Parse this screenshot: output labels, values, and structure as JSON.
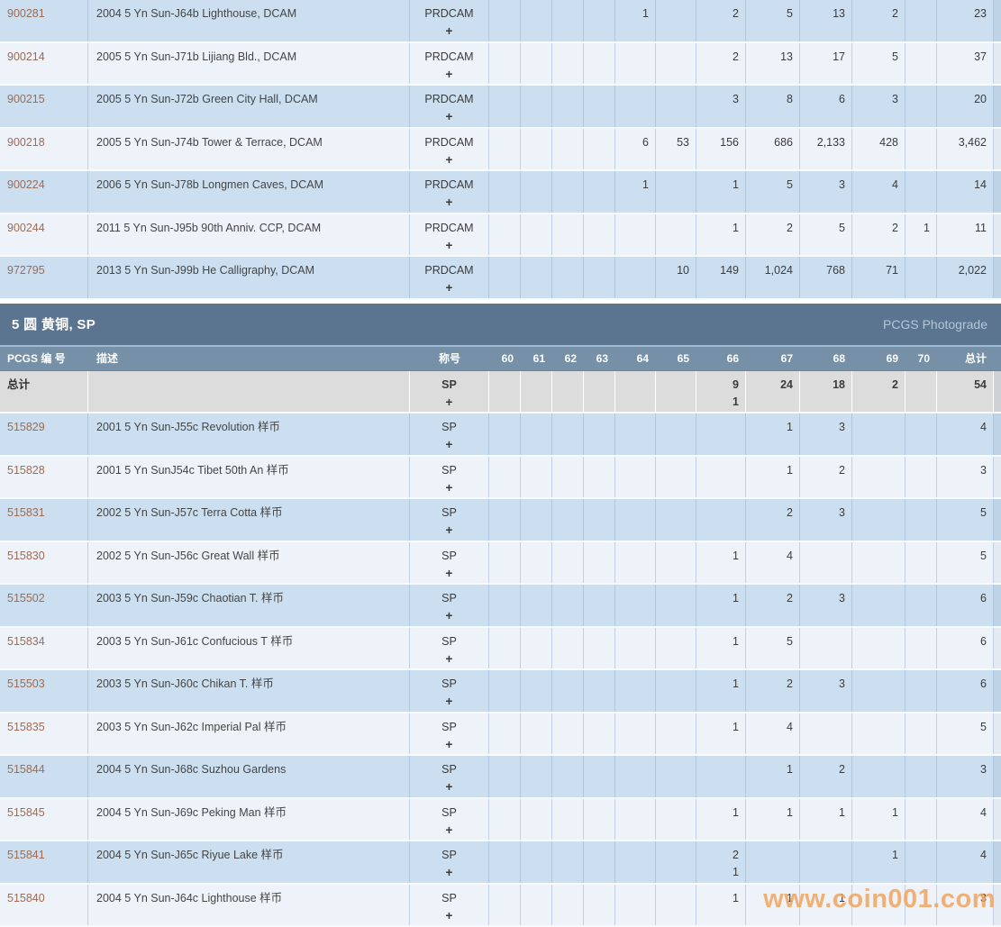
{
  "watermark": "www.coin001.com",
  "plus_sign": "+",
  "section": {
    "title": "5 圆 黄铜, SP",
    "right_label": "PCGS Photograde"
  },
  "table_header": {
    "pcgs_no": "PCGS 编 号",
    "desc": "描述",
    "designation": "称号",
    "grades": [
      "60",
      "61",
      "62",
      "63",
      "64",
      "65",
      "66",
      "67",
      "68",
      "69",
      "70"
    ],
    "total": "总计"
  },
  "table1_rows": [
    {
      "pcgs_no": "900281",
      "desc": "2004 5 Yn Sun-J64b Lighthouse, DCAM",
      "desig": "PRDCAM",
      "values": {
        "64": "1",
        "66": "2",
        "67": "5",
        "68": "13",
        "69": "2"
      },
      "total": "23"
    },
    {
      "pcgs_no": "900214",
      "desc": "2005 5 Yn Sun-J71b Lijiang Bld., DCAM",
      "desig": "PRDCAM",
      "values": {
        "66": "2",
        "67": "13",
        "68": "17",
        "69": "5"
      },
      "total": "37"
    },
    {
      "pcgs_no": "900215",
      "desc": "2005 5 Yn Sun-J72b Green City Hall, DCAM",
      "desig": "PRDCAM",
      "values": {
        "66": "3",
        "67": "8",
        "68": "6",
        "69": "3"
      },
      "total": "20"
    },
    {
      "pcgs_no": "900218",
      "desc": "2005 5 Yn Sun-J74b Tower & Terrace, DCAM",
      "desig": "PRDCAM",
      "values": {
        "64": "6",
        "65": "53",
        "66": "156",
        "67": "686",
        "68": "2,133",
        "69": "428"
      },
      "total": "3,462"
    },
    {
      "pcgs_no": "900224",
      "desc": "2006 5 Yn Sun-J78b Longmen Caves, DCAM",
      "desig": "PRDCAM",
      "values": {
        "64": "1",
        "66": "1",
        "67": "5",
        "68": "3",
        "69": "4"
      },
      "total": "14"
    },
    {
      "pcgs_no": "900244",
      "desc": "2011 5 Yn Sun-J95b 90th Anniv. CCP, DCAM",
      "desig": "PRDCAM",
      "values": {
        "66": "1",
        "67": "2",
        "68": "5",
        "69": "2",
        "70": "1"
      },
      "total": "11"
    },
    {
      "pcgs_no": "972795",
      "desc": "2013 5 Yn Sun-J99b He Calligraphy, DCAM",
      "desig": "PRDCAM",
      "values": {
        "65": "10",
        "66": "149",
        "67": "1,024",
        "68": "768",
        "69": "71"
      },
      "total": "2,022"
    }
  ],
  "totals_row": {
    "label": "总计",
    "desig": "SP",
    "values": {
      "66": "9",
      "67": "24",
      "68": "18",
      "69": "2"
    },
    "plus_values": {
      "66": "1"
    },
    "total": "54"
  },
  "table2_rows": [
    {
      "pcgs_no": "515829",
      "desc": "2001 5 Yn Sun-J55c Revolution 样币",
      "desig": "SP",
      "values": {
        "67": "1",
        "68": "3"
      },
      "total": "4"
    },
    {
      "pcgs_no": "515828",
      "desc": "2001 5 Yn SunJ54c Tibet 50th An 样币",
      "desig": "SP",
      "values": {
        "67": "1",
        "68": "2"
      },
      "total": "3"
    },
    {
      "pcgs_no": "515831",
      "desc": "2002 5 Yn Sun-J57c Terra Cotta 样币",
      "desig": "SP",
      "values": {
        "67": "2",
        "68": "3"
      },
      "total": "5"
    },
    {
      "pcgs_no": "515830",
      "desc": "2002 5 Yn Sun-J56c Great Wall 样币",
      "desig": "SP",
      "values": {
        "66": "1",
        "67": "4"
      },
      "total": "5"
    },
    {
      "pcgs_no": "515502",
      "desc": "2003 5 Yn Sun-J59c Chaotian T. 样币",
      "desig": "SP",
      "values": {
        "66": "1",
        "67": "2",
        "68": "3"
      },
      "total": "6"
    },
    {
      "pcgs_no": "515834",
      "desc": "2003 5 Yn Sun-J61c Confucious T 样币",
      "desig": "SP",
      "values": {
        "66": "1",
        "67": "5"
      },
      "total": "6"
    },
    {
      "pcgs_no": "515503",
      "desc": "2003 5 Yn Sun-J60c Chikan T. 样币",
      "desig": "SP",
      "values": {
        "66": "1",
        "67": "2",
        "68": "3"
      },
      "total": "6"
    },
    {
      "pcgs_no": "515835",
      "desc": "2003 5 Yn Sun-J62c Imperial Pal 样币",
      "desig": "SP",
      "values": {
        "66": "1",
        "67": "4"
      },
      "total": "5"
    },
    {
      "pcgs_no": "515844",
      "desc": "2004 5 Yn Sun-J68c Suzhou Gardens",
      "desig": "SP",
      "values": {
        "67": "1",
        "68": "2"
      },
      "total": "3"
    },
    {
      "pcgs_no": "515845",
      "desc": "2004 5 Yn Sun-J69c Peking Man 样币",
      "desig": "SP",
      "values": {
        "66": "1",
        "67": "1",
        "68": "1",
        "69": "1"
      },
      "total": "4"
    },
    {
      "pcgs_no": "515841",
      "desc": "2004 5 Yn Sun-J65c Riyue Lake 样币",
      "desig": "SP",
      "values": {
        "66": "2",
        "69": "1"
      },
      "plus_values": {
        "66": "1"
      },
      "total": "4"
    },
    {
      "pcgs_no": "515840",
      "desc": "2004 5 Yn Sun-J64c Lighthouse 样币",
      "desig": "SP",
      "values": {
        "66": "1",
        "67": "1",
        "68": "1"
      },
      "total": "3"
    }
  ],
  "colors": {
    "section_bar": "#5b7490",
    "header_row": "#7590a7",
    "row_blue": "#cbdff0",
    "row_light": "#eef3fa",
    "totals_row": "#dcdcdc",
    "pcgs_number_link": "#9c6b55",
    "watermark": "#f2a25c"
  }
}
